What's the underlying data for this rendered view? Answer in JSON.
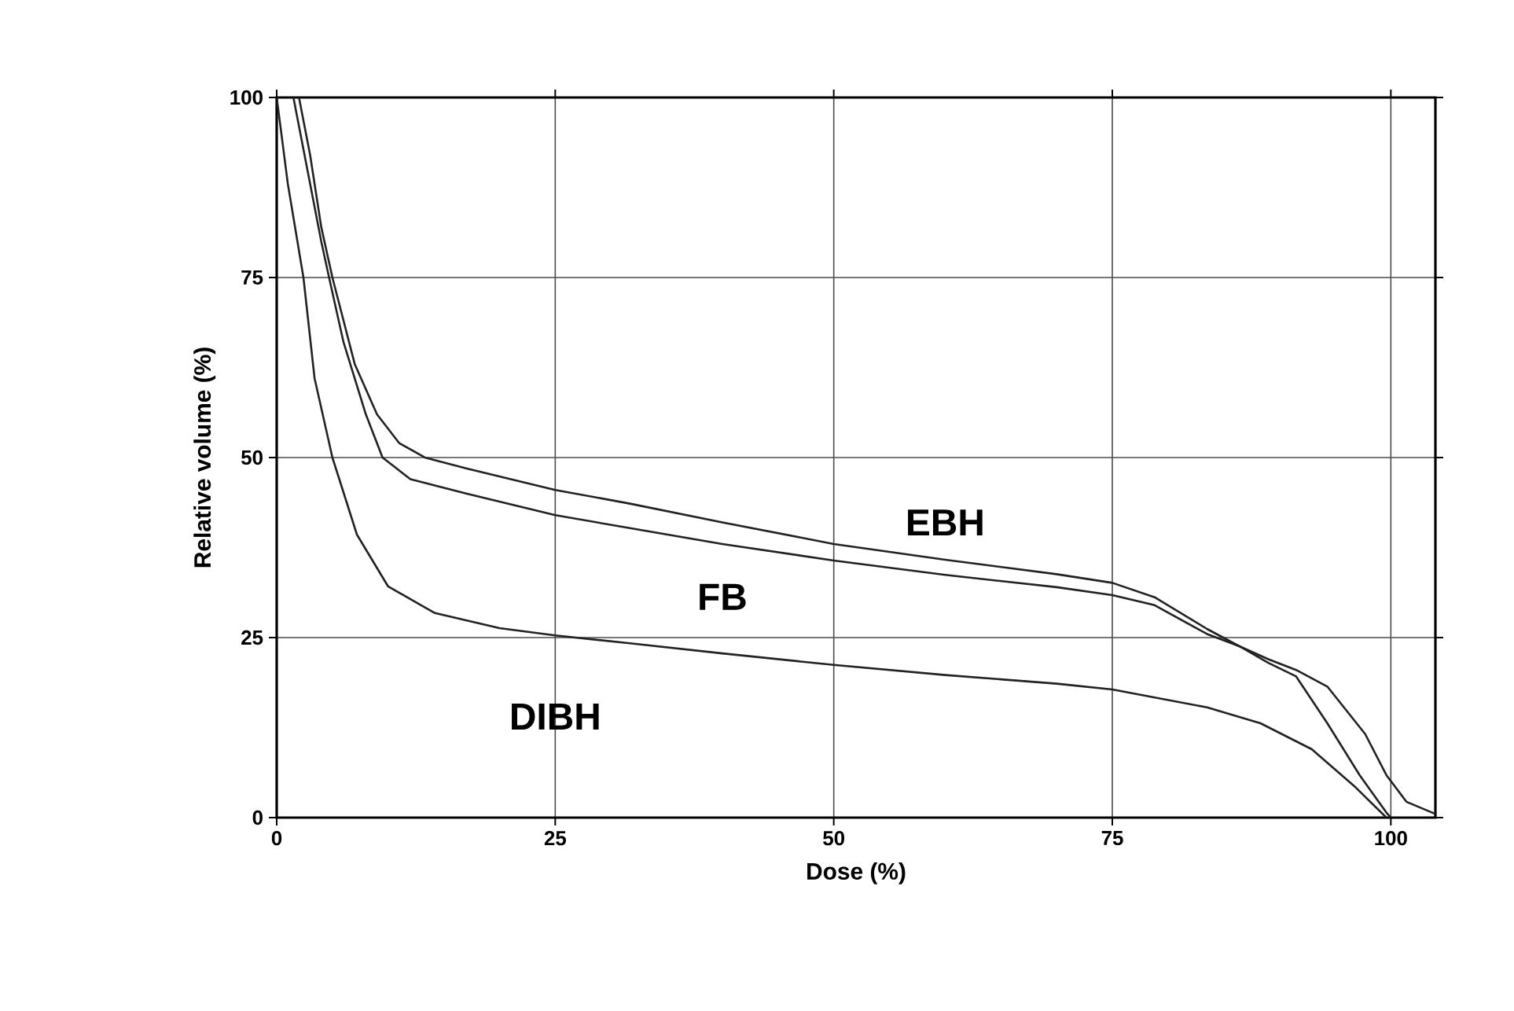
{
  "chart_data": {
    "type": "line",
    "xlabel": "Dose (%)",
    "ylabel": "Relative volume (%)",
    "xlim": [
      0,
      104
    ],
    "ylim": [
      0,
      100
    ],
    "xticks": [
      0,
      25,
      50,
      75,
      100
    ],
    "yticks": [
      0,
      25,
      50,
      75,
      100
    ],
    "grid": true,
    "legend": false,
    "marker": "none",
    "line_style": "solid",
    "series": [
      {
        "name": "EBH",
        "color": "#222222",
        "x": [
          2,
          3,
          4,
          5,
          7,
          9,
          11,
          13.3,
          17,
          25,
          31.7,
          40,
          50,
          60,
          70,
          75,
          78.8,
          83.5,
          86.4,
          89,
          91.5,
          94.3,
          97.2,
          99.6,
          100
        ],
        "values": [
          100,
          92,
          82,
          75,
          63,
          56,
          52,
          50,
          48.5,
          45.5,
          43.6,
          41,
          38,
          35.8,
          33.8,
          32.6,
          30.6,
          26.2,
          23.8,
          21.5,
          19.6,
          13.1,
          5.9,
          0.7,
          0
        ]
      },
      {
        "name": "FB",
        "color": "#222222",
        "x": [
          1.5,
          3,
          4,
          4.7,
          6,
          8,
          9.5,
          12,
          17,
          25,
          31.7,
          40,
          50,
          60,
          70,
          75,
          78.8,
          83.5,
          86.4,
          89,
          91.5,
          94.3,
          97.7,
          99.6,
          101.4,
          104
        ],
        "values": [
          100,
          88,
          80,
          75,
          66,
          56,
          50,
          47,
          45,
          42,
          40.2,
          38,
          35.7,
          33.7,
          32,
          30.9,
          29.5,
          25.5,
          23.8,
          22,
          20.5,
          18.2,
          11.6,
          5.9,
          2.2,
          0.5
        ]
      },
      {
        "name": "DIBH",
        "color": "#222222",
        "x": [
          0,
          1,
          2.4,
          3.4,
          5,
          7.2,
          10,
          14.2,
          20,
          25,
          31.7,
          40,
          50,
          60,
          70,
          75,
          83.5,
          88.3,
          92.9,
          96.7,
          99.6
        ],
        "values": [
          100,
          88,
          75,
          61,
          50,
          39.3,
          32.1,
          28.4,
          26.3,
          25.3,
          24.2,
          22.8,
          21.2,
          19.8,
          18.6,
          17.8,
          15.3,
          13.1,
          9.5,
          4.4,
          0
        ]
      }
    ]
  }
}
